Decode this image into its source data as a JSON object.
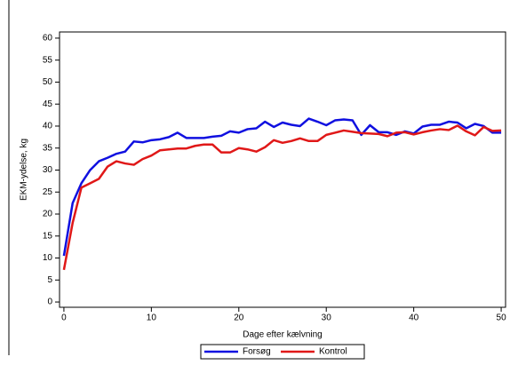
{
  "chart_data": {
    "type": "line",
    "xlabel": "Dage efter kælvning",
    "ylabel": "EKM-ydelse, kg",
    "x": [
      0,
      1,
      2,
      3,
      4,
      5,
      6,
      7,
      8,
      9,
      10,
      11,
      12,
      13,
      14,
      15,
      16,
      17,
      18,
      19,
      20,
      21,
      22,
      23,
      24,
      25,
      26,
      27,
      28,
      29,
      30,
      31,
      32,
      33,
      34,
      35,
      36,
      37,
      38,
      39,
      40,
      41,
      42,
      43,
      44,
      45,
      46,
      47,
      48,
      49,
      50
    ],
    "series": [
      {
        "name": "Forsøg",
        "color": "#1010e0",
        "values": [
          10.5,
          22.5,
          27,
          30,
          32,
          32.8,
          33.7,
          34.2,
          36.5,
          36.3,
          36.8,
          37,
          37.5,
          38.5,
          37.3,
          37.3,
          37.3,
          37.6,
          37.8,
          38.8,
          38.5,
          39.3,
          39.5,
          41,
          39.8,
          40.8,
          40.3,
          40,
          41.7,
          41,
          40.2,
          41.3,
          41.5,
          41.3,
          38,
          40.2,
          38.6,
          38.6,
          38,
          38.8,
          38.3,
          39.9,
          40.3,
          40.3,
          41,
          40.8,
          39.5,
          40.5,
          40,
          38.5,
          38.5
        ]
      },
      {
        "name": "Kontrol",
        "color": "#e01818",
        "values": [
          7.3,
          18,
          26,
          27,
          28,
          30.8,
          32,
          31.5,
          31.2,
          32.5,
          33.3,
          34.5,
          34.7,
          34.9,
          34.9,
          35.5,
          35.8,
          35.8,
          34,
          34,
          35,
          34.7,
          34.2,
          35.2,
          36.8,
          36.2,
          36.6,
          37.2,
          36.6,
          36.6,
          38,
          38.5,
          39,
          38.7,
          38.4,
          38.3,
          38.2,
          37.7,
          38.5,
          38.6,
          38.1,
          38.6,
          39,
          39.3,
          39.1,
          40.1,
          38.8,
          37.9,
          39.8,
          38.9,
          39
        ]
      }
    ],
    "xlim": [
      -0.5,
      50.5
    ],
    "xticks": [
      0,
      10,
      20,
      30,
      40,
      50
    ],
    "ylim": [
      -1.2,
      61.4
    ],
    "yticks": [
      0,
      5,
      10,
      15,
      20,
      25,
      30,
      35,
      40,
      45,
      50,
      55,
      60
    ],
    "legend": "bottom"
  }
}
